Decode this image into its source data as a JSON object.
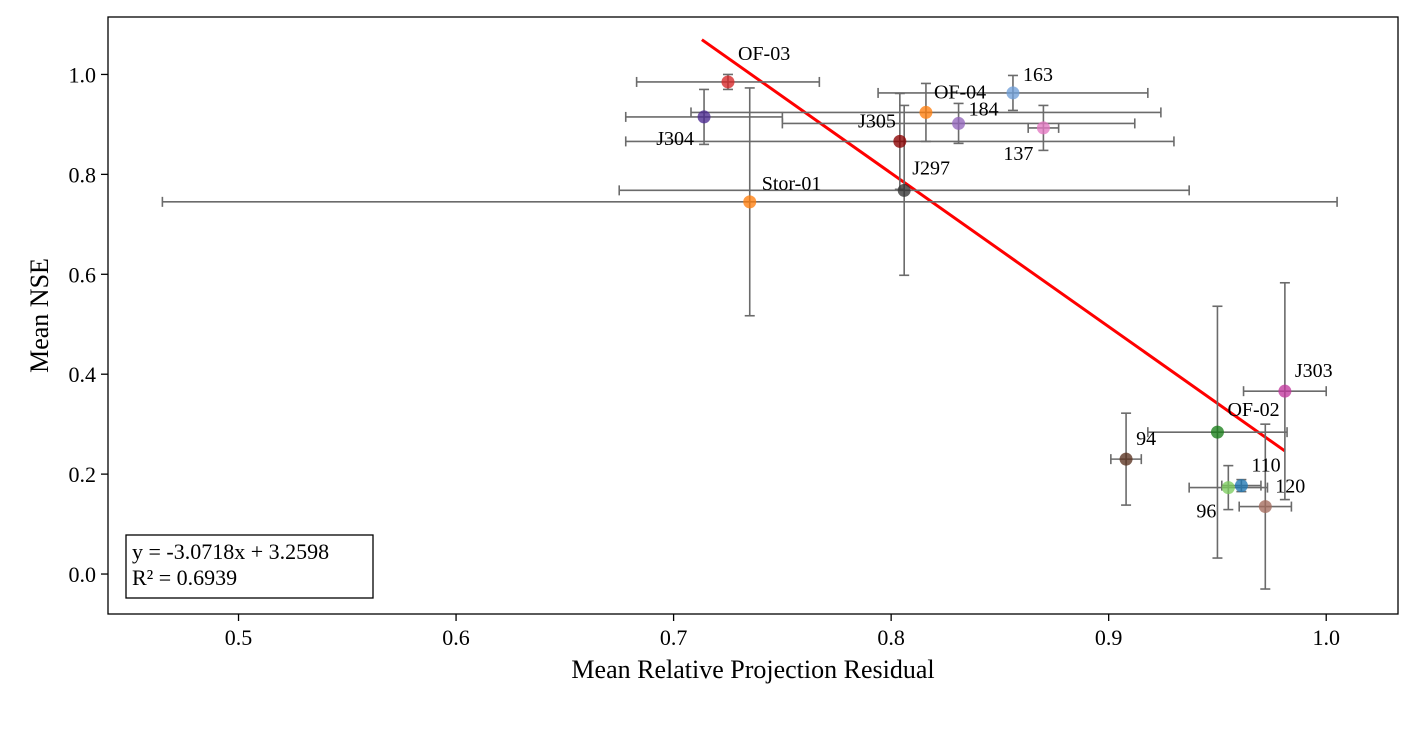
{
  "chart_data": {
    "type": "scatter",
    "title": "",
    "xlabel": "Mean Relative Projection Residual",
    "ylabel": "Mean NSE",
    "xlim": [
      0.44,
      1.033
    ],
    "ylim": [
      -0.08,
      1.115
    ],
    "xticks": [
      0.5,
      0.6,
      0.7,
      0.8,
      0.9,
      1.0
    ],
    "xtick_labels": [
      "0.5",
      "0.6",
      "0.7",
      "0.8",
      "0.9",
      "1.0"
    ],
    "yticks": [
      0.0,
      0.2,
      0.4,
      0.6,
      0.8,
      1.0
    ],
    "ytick_labels": [
      "0.0",
      "0.2",
      "0.4",
      "0.6",
      "0.8",
      "1.0"
    ],
    "grid": false,
    "points": [
      {
        "label": "OF-03",
        "x": 0.725,
        "y": 0.985,
        "xerr": 0.042,
        "yerr": 0.015,
        "color": "#d62728"
      },
      {
        "label": "J304",
        "x": 0.714,
        "y": 0.915,
        "xerr": 0.036,
        "yerr": 0.055,
        "color": "#4b2991"
      },
      {
        "label": "Stor-01",
        "x": 0.735,
        "y": 0.745,
        "xerr": 0.27,
        "yerr": 0.228,
        "color": "#ff7f0e"
      },
      {
        "label": "J305",
        "x": 0.804,
        "y": 0.866,
        "xerr": 0.126,
        "yerr": 0.096,
        "color": "#8b0000"
      },
      {
        "label": "J297",
        "x": 0.806,
        "y": 0.768,
        "xerr": 0.131,
        "yerr": 0.17,
        "color": "#333333"
      },
      {
        "label": "OF-04",
        "x": 0.816,
        "y": 0.924,
        "xerr": 0.108,
        "yerr": 0.058,
        "color": "#ff7f0e"
      },
      {
        "label": "184",
        "x": 0.831,
        "y": 0.902,
        "xerr": 0.081,
        "yerr": 0.04,
        "color": "#9467bd"
      },
      {
        "label": "163",
        "x": 0.856,
        "y": 0.963,
        "xerr": 0.062,
        "yerr": 0.035,
        "color": "#6f9fd8"
      },
      {
        "label": "137",
        "x": 0.87,
        "y": 0.893,
        "xerr": 0.007,
        "yerr": 0.045,
        "color": "#e377c2"
      },
      {
        "label": "J303",
        "x": 0.981,
        "y": 0.366,
        "xerr": 0.019,
        "yerr": 0.217,
        "color": "#c2389e"
      },
      {
        "label": "OF-02",
        "x": 0.95,
        "y": 0.284,
        "xerr": 0.032,
        "yerr": 0.252,
        "color": "#1a7f1a"
      },
      {
        "label": "94",
        "x": 0.908,
        "y": 0.23,
        "xerr": 0.007,
        "yerr": 0.092,
        "color": "#5a3220"
      },
      {
        "label": "110",
        "x": 0.961,
        "y": 0.177,
        "xerr": 0.009,
        "yerr": 0.012,
        "color": "#1f77b4"
      },
      {
        "label": "96",
        "x": 0.955,
        "y": 0.173,
        "xerr": 0.018,
        "yerr": 0.044,
        "color": "#7ccd5f"
      },
      {
        "label": "120",
        "x": 0.972,
        "y": 0.135,
        "xerr": 0.012,
        "yerr": 0.165,
        "color": "#a46b5d"
      }
    ],
    "fit_line": {
      "slope": -3.0718,
      "intercept": 3.2598,
      "x_range": [
        0.713,
        0.981
      ],
      "color": "#ff0000"
    },
    "annotation": {
      "lines": [
        "y = -3.0718x + 3.2598",
        "R² = 0.6939"
      ],
      "position": "bottom-left"
    }
  }
}
